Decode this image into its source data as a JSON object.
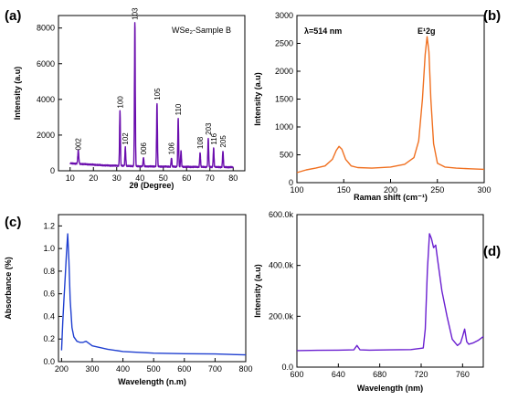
{
  "chart_data": [
    {
      "panel": "(a)",
      "type": "line",
      "annotation": "WSe₂-Sample B",
      "xlabel": "2θ (Degree)",
      "ylabel": "Intensity (a.u)",
      "xlim": [
        5,
        85
      ],
      "ylim": [
        0,
        8700
      ],
      "xticks": [
        10,
        20,
        30,
        40,
        50,
        60,
        70,
        80
      ],
      "yticks": [
        0,
        2000,
        4000,
        6000,
        8000
      ],
      "color": "#6a0dad",
      "baseline": [
        [
          10,
          420
        ],
        [
          15,
          380
        ],
        [
          25,
          300
        ],
        [
          40,
          250
        ],
        [
          60,
          220
        ],
        [
          80,
          200
        ]
      ],
      "peaks": [
        {
          "x": 13.5,
          "y": 750,
          "label": "002",
          "w": 0.3
        },
        {
          "x": 31.4,
          "y": 3100,
          "label": "100",
          "w": 0.25
        },
        {
          "x": 33.7,
          "y": 1050,
          "label": "102",
          "w": 0.25
        },
        {
          "x": 37.8,
          "y": 8050,
          "label": "103",
          "w": 0.25
        },
        {
          "x": 41.5,
          "y": 500,
          "label": "006",
          "w": 0.25
        },
        {
          "x": 47.3,
          "y": 3550,
          "label": "105",
          "w": 0.25
        },
        {
          "x": 53.5,
          "y": 500,
          "label": "106",
          "w": 0.25
        },
        {
          "x": 56.4,
          "y": 2700,
          "label": "110",
          "w": 0.25
        },
        {
          "x": 57.6,
          "y": 900,
          "label": "",
          "w": 0.25
        },
        {
          "x": 65.8,
          "y": 820,
          "label": "108",
          "w": 0.25
        },
        {
          "x": 69.3,
          "y": 1600,
          "label": "203",
          "w": 0.25
        },
        {
          "x": 71.6,
          "y": 1050,
          "label": "116",
          "w": 0.25
        },
        {
          "x": 75.6,
          "y": 900,
          "label": "205",
          "w": 0.25
        }
      ]
    },
    {
      "panel": "(b)",
      "type": "line",
      "annotation": "λ=514 nm",
      "peak_annotation": "E¹2g",
      "xlabel": "Raman shift (cm⁻¹)",
      "ylabel": "Intensity (a.u)",
      "xlim": [
        100,
        300
      ],
      "ylim": [
        0,
        3000
      ],
      "xticks": [
        100,
        150,
        200,
        250,
        300
      ],
      "yticks": [
        0,
        500,
        1000,
        1500,
        2000,
        2500,
        3000
      ],
      "color": "#f07020",
      "x": [
        100,
        110,
        120,
        130,
        138,
        142,
        145,
        148,
        152,
        158,
        165,
        180,
        200,
        215,
        225,
        230,
        234,
        237,
        239,
        241,
        243,
        246,
        250,
        258,
        270,
        285,
        300
      ],
      "y": [
        180,
        230,
        260,
        300,
        420,
        580,
        650,
        600,
        420,
        300,
        270,
        260,
        280,
        330,
        450,
        750,
        1500,
        2300,
        2620,
        2350,
        1500,
        700,
        350,
        280,
        260,
        250,
        240
      ]
    },
    {
      "panel": "(c)",
      "type": "line",
      "xlabel": "Wavelength (n.m)",
      "ylabel": "Absorbance (%)",
      "xlim": [
        190,
        800
      ],
      "ylim": [
        0,
        1.3
      ],
      "xticks": [
        200,
        300,
        400,
        500,
        600,
        700,
        800
      ],
      "yticks": [
        0.0,
        0.2,
        0.4,
        0.6,
        0.8,
        1.0,
        1.2
      ],
      "color": "#1f3fd0",
      "x": [
        200,
        204,
        208,
        212,
        216,
        220,
        224,
        228,
        234,
        240,
        250,
        260,
        270,
        280,
        290,
        300,
        350,
        400,
        500,
        600,
        700,
        800
      ],
      "y": [
        0.1,
        0.35,
        0.55,
        0.75,
        0.95,
        1.13,
        0.9,
        0.55,
        0.3,
        0.22,
        0.18,
        0.17,
        0.17,
        0.18,
        0.16,
        0.14,
        0.11,
        0.09,
        0.075,
        0.07,
        0.068,
        0.06
      ]
    },
    {
      "panel": "(d)",
      "type": "line",
      "xlabel": "Wavelength (nm)",
      "ylabel": "Intensity (a.u)",
      "xlim": [
        600,
        780
      ],
      "ylim": [
        0,
        600000
      ],
      "xticks": [
        600,
        640,
        680,
        720,
        760
      ],
      "ytick_values": [
        0,
        200000,
        400000,
        600000
      ],
      "ytick_labels": [
        "0.0",
        "200.0k",
        "400.0k",
        "600.0k"
      ],
      "color": "#6a1fd0",
      "x": [
        600,
        620,
        640,
        655,
        658,
        661,
        670,
        690,
        710,
        722,
        724,
        726,
        728,
        730,
        732,
        734,
        736,
        740,
        745,
        750,
        755,
        758,
        760,
        762,
        764,
        766,
        770,
        775,
        780
      ],
      "y": [
        65000,
        66000,
        67000,
        68000,
        85000,
        68000,
        67000,
        68000,
        69000,
        75000,
        150000,
        380000,
        525000,
        505000,
        470000,
        480000,
        420000,
        300000,
        200000,
        110000,
        85000,
        95000,
        120000,
        150000,
        100000,
        90000,
        95000,
        105000,
        120000
      ]
    }
  ]
}
